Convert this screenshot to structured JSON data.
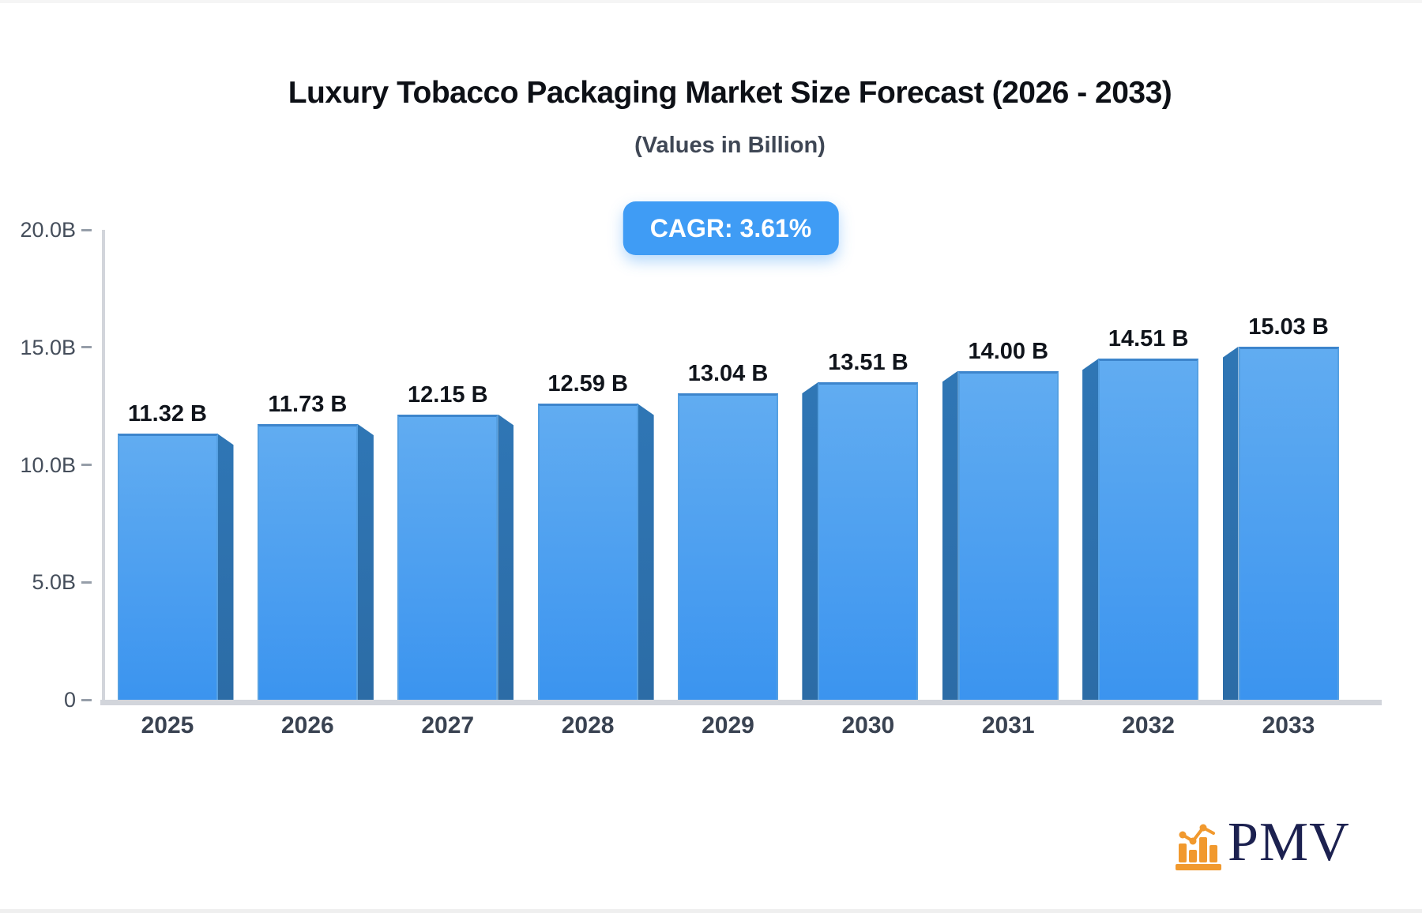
{
  "header": {
    "title": "Luxury Tobacco Packaging Market Size Forecast (2026 - 2033)",
    "subtitle": "(Values in Billion)"
  },
  "badge": {
    "label": "CAGR: 3.61%"
  },
  "chart_data": {
    "type": "bar",
    "title": "Luxury Tobacco Packaging Market Size Forecast (2026 - 2033)",
    "subtitle": "(Values in Billion)",
    "cagr_percent": 3.61,
    "categories": [
      "2025",
      "2026",
      "2027",
      "2028",
      "2029",
      "2030",
      "2031",
      "2032",
      "2033"
    ],
    "values": [
      11.32,
      11.73,
      12.15,
      12.59,
      13.04,
      13.51,
      14.0,
      14.51,
      15.03
    ],
    "value_labels": [
      "11.32 B",
      "11.73 B",
      "12.15 B",
      "12.59 B",
      "13.04 B",
      "13.51 B",
      "14.00 B",
      "14.51 B",
      "15.03 B"
    ],
    "xlabel": "",
    "ylabel": "",
    "ylim": [
      0,
      20
    ],
    "y_ticks": [
      {
        "label": "20.0B",
        "value": 20
      },
      {
        "label": "15.0B",
        "value": 15
      },
      {
        "label": "10.0B",
        "value": 10
      },
      {
        "label": "5.0B",
        "value": 5
      },
      {
        "label": "0",
        "value": 0
      }
    ],
    "grid": false,
    "legend": false,
    "colors": {
      "bar_face_top": "#61acf1",
      "bar_face_bottom": "#3b94ef",
      "bar_border": "#3d85cc",
      "bar_side_top": "#2f76b5",
      "bar_side_bottom": "#2c6ca6",
      "badge_bg": "#3f9cf5",
      "axis": "#d2d5db",
      "tick_dash": "#969ea9",
      "tick_label": "#454e5b",
      "x_label": "#394251",
      "value_label": "#10141b"
    }
  },
  "logo": {
    "text": "PMV",
    "icon": "bar-chart-logo-icon",
    "icon_color": "#f1992e",
    "text_color": "#1c2150"
  }
}
